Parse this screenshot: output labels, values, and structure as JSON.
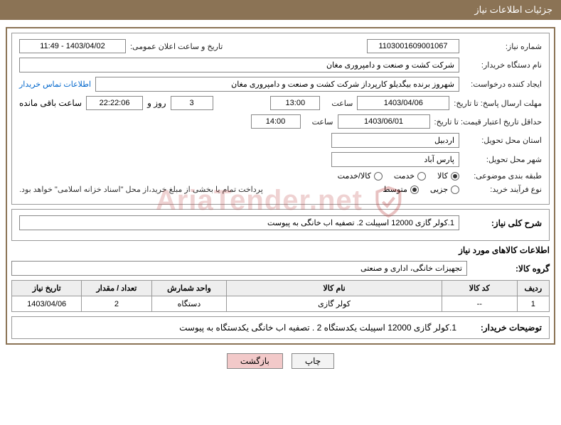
{
  "header": {
    "title": "جزئیات اطلاعات نیاز"
  },
  "fields": {
    "need_number_label": "شماره نیاز:",
    "need_number": "1103001609001067",
    "announce_label": "تاریخ و ساعت اعلان عمومی:",
    "announce_value": "1403/04/02 - 11:49",
    "buyer_org_label": "نام دستگاه خریدار:",
    "buyer_org": "شرکت کشت و صنعت و دامپروری مغان",
    "requester_label": "ایجاد کننده درخواست:",
    "requester": "شهروز برنده بیگدیلو کارپرداز شرکت کشت و صنعت و دامپروری مغان",
    "contact_link": "اطلاعات تماس خریدار",
    "reply_deadline_label": "مهلت ارسال پاسخ: تا تاریخ:",
    "reply_date": "1403/04/06",
    "time_label": "ساعت",
    "reply_time": "13:00",
    "days_value": "3",
    "days_and": "روز و",
    "countdown": "22:22:06",
    "remaining": "ساعت باقی مانده",
    "validity_label": "حداقل تاریخ اعتبار قیمت: تا تاریخ:",
    "validity_date": "1403/06/01",
    "validity_time": "14:00",
    "province_label": "استان محل تحویل:",
    "province": "اردبیل",
    "city_label": "شهر محل تحویل:",
    "city": "پارس آباد",
    "category_label": "طبقه بندی موضوعی:",
    "process_label": "نوع فرآیند خرید:",
    "payment_note": "پرداخت تمام یا بخشی از مبلغ خرید،از محل \"اسناد خزانه اسلامی\" خواهد بود."
  },
  "radios": {
    "cat": [
      {
        "label": "کالا",
        "checked": true
      },
      {
        "label": "خدمت",
        "checked": false
      },
      {
        "label": "کالا/خدمت",
        "checked": false
      }
    ],
    "proc": [
      {
        "label": "جزیی",
        "checked": false
      },
      {
        "label": "متوسط",
        "checked": true
      }
    ]
  },
  "summary": {
    "label": "شرح کلی نیاز:",
    "text": "1.کولر گازی 12000 اسپیلت 2. تصفیه اب خانگی   به پیوست"
  },
  "goods_section": {
    "title": "اطلاعات کالاهای مورد نیاز",
    "group_label": "گروه کالا:",
    "group_value": "تجهیزات خانگی، اداری و صنعتی"
  },
  "table": {
    "headers": [
      "ردیف",
      "کد کالا",
      "نام کالا",
      "واحد شمارش",
      "تعداد / مقدار",
      "تاریخ نیاز"
    ],
    "rows": [
      [
        "1",
        "--",
        "کولر گازی",
        "دستگاه",
        "2",
        "1403/04/06"
      ]
    ]
  },
  "buyer_desc": {
    "label": "توضیحات خریدار:",
    "text": "1.کولر گازی 12000 اسپیلت یکدستگاه 2 . تصفیه اب خانگی  یکدستگاه  به پیوست"
  },
  "buttons": {
    "print": "چاپ",
    "back": "بازگشت"
  },
  "watermark": {
    "text": "AriaTender.net"
  }
}
